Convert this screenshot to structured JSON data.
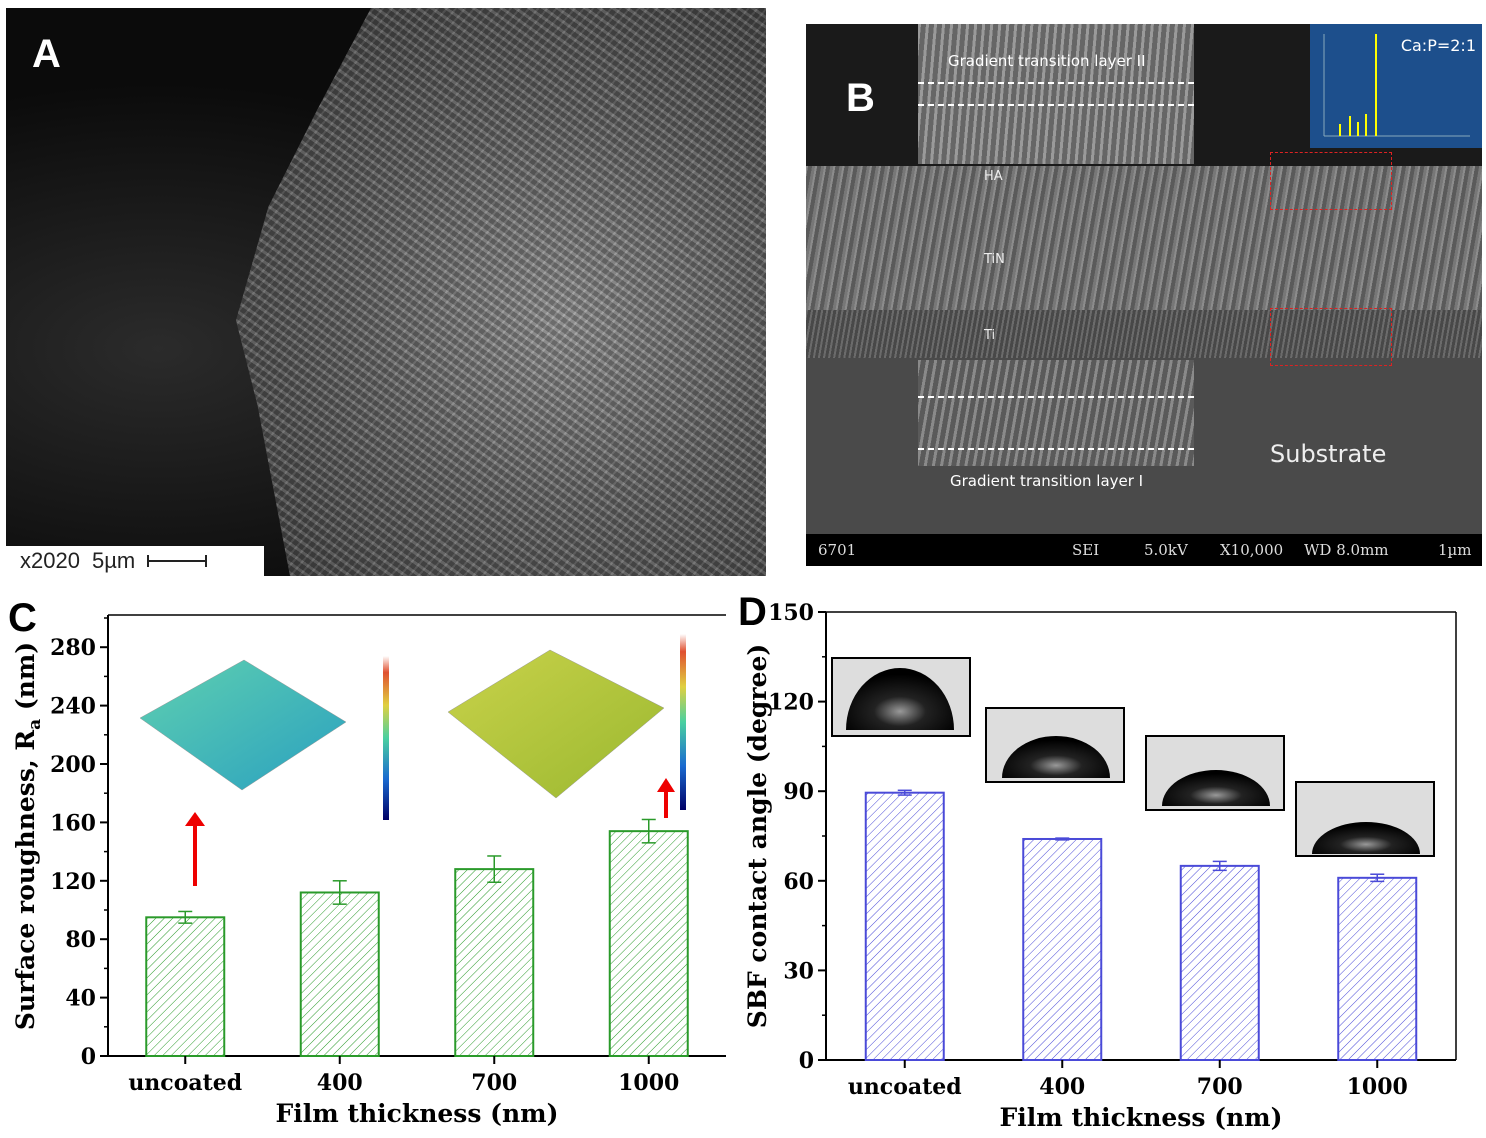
{
  "panels": {
    "a": {
      "label": "A",
      "scale_text": "x2020",
      "scale_length": "5µm"
    },
    "b": {
      "label": "B",
      "eds_label": "Ca:P=2:1",
      "inset_top_label": "Gradient transition layer II",
      "inset_bottom_label": "Gradient transition layer I",
      "layer_ha": "HA",
      "layer_tin": "TiN",
      "layer_ti": "Ti",
      "substrate_label": "Substrate",
      "info": {
        "id": "6701",
        "mode": "SEI",
        "voltage": "5.0kV",
        "mag": "X10,000",
        "wd": "WD 8.0mm",
        "scale": "1µm"
      }
    }
  },
  "chart_data": [
    {
      "panel_label": "C",
      "type": "bar",
      "categories": [
        "uncoated",
        "400",
        "700",
        "1000"
      ],
      "values": [
        95,
        112,
        128,
        154
      ],
      "errors": [
        4,
        8,
        9,
        8
      ],
      "xlabel": "Film thickness (nm)",
      "ylabel_main": "Surface roughness, R",
      "ylabel_sub": "a",
      "ylabel_unit": " (nm)",
      "ylim": [
        0,
        300
      ],
      "yticks": [
        0,
        40,
        80,
        120,
        160,
        200,
        240,
        280
      ],
      "bar_color": "#2a9a2a",
      "fill_pattern": "diagonal-hatch",
      "annotations": "red-arrow-to-afm-inset"
    },
    {
      "panel_label": "D",
      "type": "bar",
      "categories": [
        "uncoated",
        "400",
        "700",
        "1000"
      ],
      "values": [
        89.5,
        74,
        65,
        61
      ],
      "errors": [
        0.8,
        0.3,
        1.5,
        1.2
      ],
      "xlabel": "Film thickness (nm)",
      "ylabel": "SBF contact angle (degree)",
      "ylim": [
        0,
        150
      ],
      "yticks": [
        0,
        30,
        60,
        90,
        120,
        150
      ],
      "bar_color": "#4a4ad8",
      "fill_pattern": "diagonal-hatch",
      "annotations": "droplet-photo-insets"
    }
  ]
}
